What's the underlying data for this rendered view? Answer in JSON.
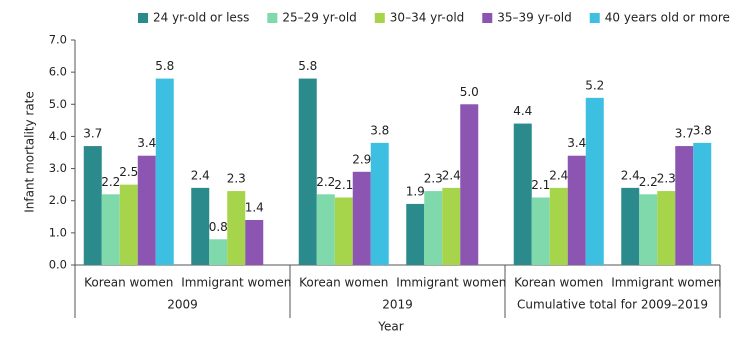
{
  "chart_data": {
    "type": "bar",
    "x_label": "Year",
    "y_label": "Infant mortality rate",
    "categories": [
      "Korean women",
      "Immigrant women",
      "Korean women",
      "Immigrant women",
      "Korean women",
      "Immigrant women"
    ],
    "groups": [
      "2009",
      "2019",
      "Cumulative total for 2009–2019"
    ],
    "series": [
      {
        "name": "24 yr-old or less",
        "color": "#2b8a8c",
        "values": [
          3.7,
          2.4,
          5.8,
          1.9,
          4.4,
          2.4
        ],
        "value_labels": [
          "3.7",
          "2.4",
          "5.8",
          "1.9",
          "4.4",
          "2.4"
        ]
      },
      {
        "name": "25–29 yr-old",
        "color": "#7fd9aa",
        "values": [
          2.2,
          0.8,
          2.2,
          2.3,
          2.1,
          2.2
        ],
        "value_labels": [
          "2.2",
          "0.8",
          "2.2",
          "2.3",
          "2.1",
          "2.2"
        ]
      },
      {
        "name": "30–34 yr-old",
        "color": "#a6d54b",
        "values": [
          2.5,
          2.3,
          2.1,
          2.4,
          2.4,
          2.3
        ],
        "value_labels": [
          "2.5",
          "2.3",
          "2.1",
          "2.4",
          "2.4",
          "2.3"
        ]
      },
      {
        "name": "35–39 yr-old",
        "color": "#8b55b1",
        "values": [
          3.4,
          1.4,
          2.9,
          5.0,
          3.4,
          3.7
        ],
        "value_labels": [
          "3.4",
          "1.4",
          "2.9",
          "5.0",
          "3.4",
          "3.7"
        ]
      },
      {
        "name": "40 years old or more",
        "color": "#3dbfe2",
        "values": [
          5.8,
          null,
          3.8,
          null,
          5.2,
          3.8
        ],
        "value_labels": [
          "5.8",
          null,
          "3.8",
          null,
          "5.2",
          "3.8"
        ]
      }
    ],
    "ylim": [
      0,
      7
    ],
    "yticks": [
      {
        "value": 0,
        "label": "0.0"
      },
      {
        "value": 1,
        "label": "1.0"
      },
      {
        "value": 2,
        "label": "2.0"
      },
      {
        "value": 3,
        "label": "3.0"
      },
      {
        "value": 4,
        "label": "4.0"
      },
      {
        "value": 5,
        "label": "5.0"
      },
      {
        "value": 6,
        "label": "6.0"
      },
      {
        "value": 7,
        "label": "7.0"
      }
    ],
    "legend": "top"
  }
}
